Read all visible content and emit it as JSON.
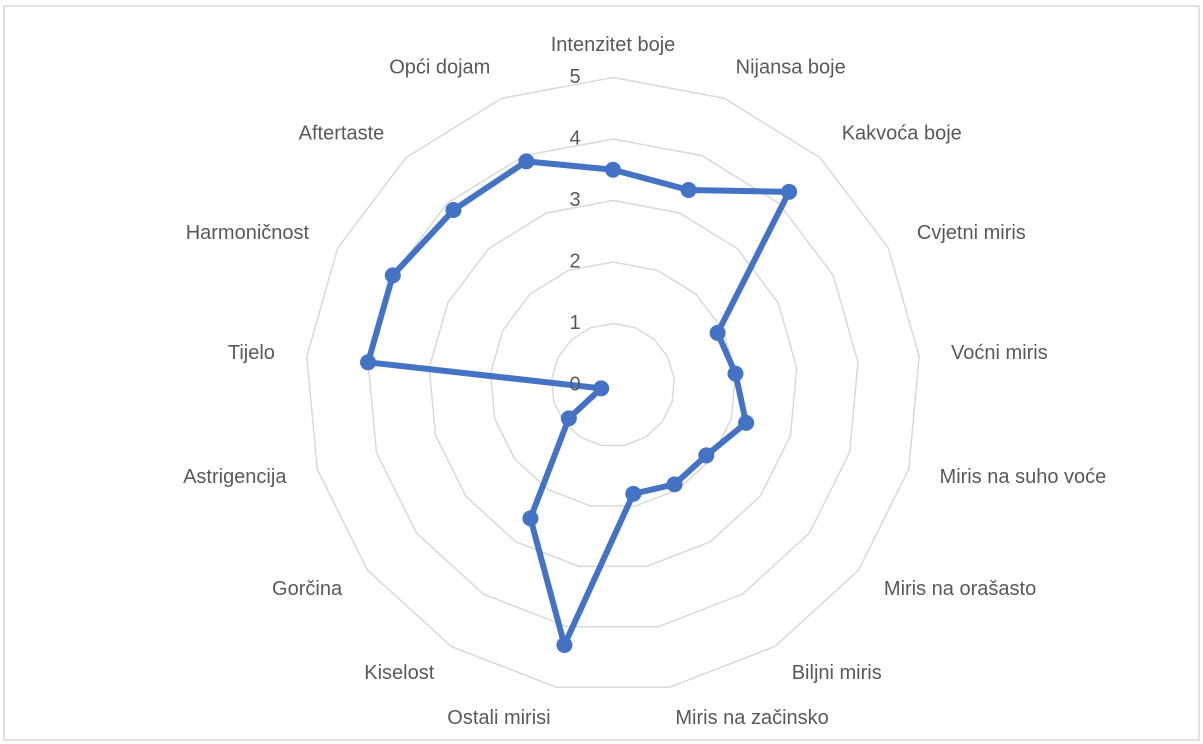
{
  "chart_data": {
    "type": "radar",
    "categories": [
      "Intenzitet boje",
      "Nijansa boje",
      "Kakvoća boje",
      "Cvjetni miris",
      "Voćni miris",
      "Miris na suho voće",
      "Miris na orašasto",
      "Biljni miris",
      "Miris na začinsko",
      "Ostali mirisi",
      "Kiselost",
      "Gorčina",
      "Astrigencija",
      "Tijelo",
      "Harmoničnost",
      "Aftertaste",
      "Opći dojam"
    ],
    "values": [
      3.5,
      3.4,
      4.25,
      1.9,
      2.0,
      2.25,
      1.9,
      1.9,
      1.8,
      4.3,
      2.55,
      0.9,
      0.2,
      4.0,
      4.0,
      3.85,
      3.9
    ],
    "color": "#4472c4",
    "ylim": [
      0,
      5
    ],
    "yticks": [
      0,
      1,
      2,
      3,
      4,
      5
    ],
    "grid": true
  }
}
